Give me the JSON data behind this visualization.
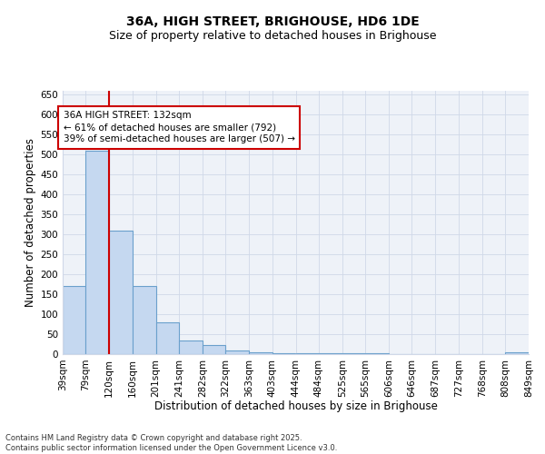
{
  "title1": "36A, HIGH STREET, BRIGHOUSE, HD6 1DE",
  "title2": "Size of property relative to detached houses in Brighouse",
  "xlabel": "Distribution of detached houses by size in Brighouse",
  "ylabel": "Number of detached properties",
  "bins": [
    39,
    79,
    120,
    160,
    201,
    241,
    282,
    322,
    363,
    403,
    444,
    484,
    525,
    565,
    606,
    646,
    687,
    727,
    768,
    808,
    849
  ],
  "bin_labels": [
    "39sqm",
    "79sqm",
    "120sqm",
    "160sqm",
    "201sqm",
    "241sqm",
    "282sqm",
    "322sqm",
    "363sqm",
    "403sqm",
    "444sqm",
    "484sqm",
    "525sqm",
    "565sqm",
    "606sqm",
    "646sqm",
    "687sqm",
    "727sqm",
    "768sqm",
    "808sqm",
    "849sqm"
  ],
  "counts": [
    170,
    510,
    310,
    170,
    80,
    35,
    22,
    8,
    5,
    3,
    3,
    2,
    2,
    2,
    1,
    1,
    1,
    1,
    1,
    5
  ],
  "bar_color": "#c5d8f0",
  "bar_edge_color": "#6aa0cc",
  "property_line_x": 120,
  "property_line_color": "#cc0000",
  "annotation_line1": "36A HIGH STREET: 132sqm",
  "annotation_line2": "← 61% of detached houses are smaller (792)",
  "annotation_line3": "39% of semi-detached houses are larger (507) →",
  "annotation_box_color": "#ffffff",
  "annotation_box_edge": "#cc0000",
  "ylim": [
    0,
    660
  ],
  "yticks": [
    0,
    50,
    100,
    150,
    200,
    250,
    300,
    350,
    400,
    450,
    500,
    550,
    600,
    650
  ],
  "grid_color": "#d0d8e8",
  "bg_color": "#eef2f8",
  "footnote": "Contains HM Land Registry data © Crown copyright and database right 2025.\nContains public sector information licensed under the Open Government Licence v3.0.",
  "title1_fontsize": 10,
  "title2_fontsize": 9,
  "xlabel_fontsize": 8.5,
  "ylabel_fontsize": 8.5,
  "tick_fontsize": 7.5,
  "annot_fontsize": 7.5,
  "footnote_fontsize": 6
}
